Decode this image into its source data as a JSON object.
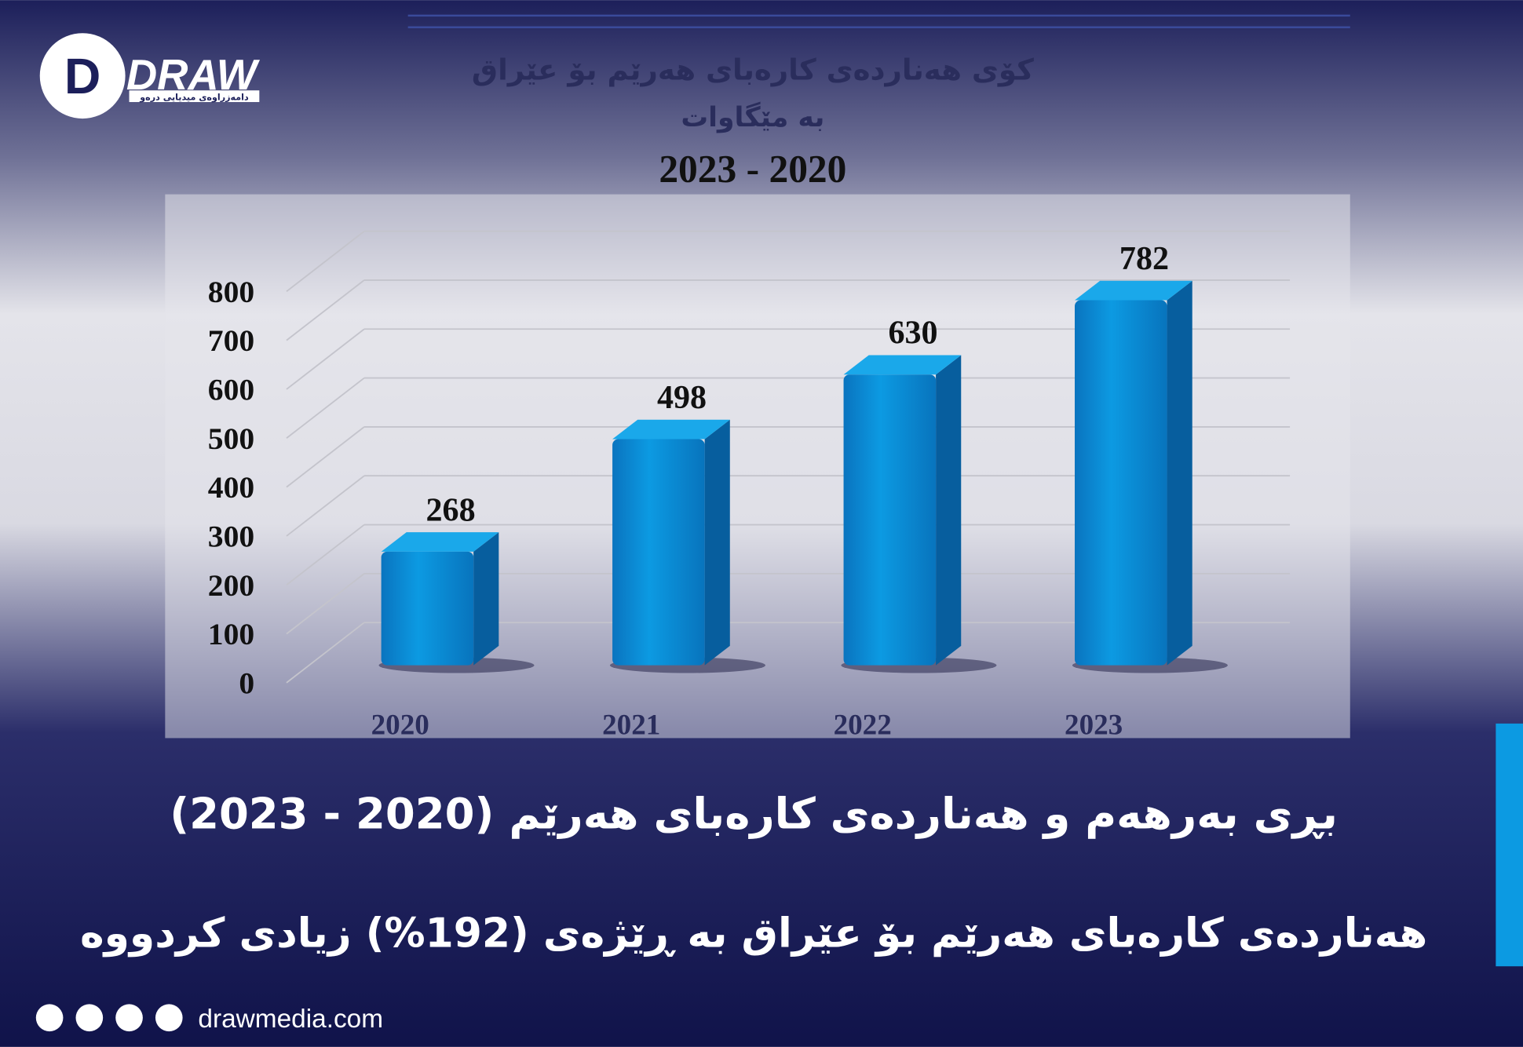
{
  "logo": {
    "name": "DRAW",
    "tagline": "دامەزراوەی میدیایی درەو"
  },
  "chart_data": {
    "type": "bar",
    "title": "کۆی هەناردەی کارەبای هەرێم بۆ عێراق",
    "subtitle": "بە مێگاوات",
    "period": "2023 - 2020",
    "categories": [
      "2020",
      "2021",
      "2022",
      "2023"
    ],
    "values": [
      268,
      498,
      630,
      782
    ],
    "color": "#0a8fd6",
    "ylim": [
      0,
      800
    ],
    "yticks": [
      0,
      100,
      200,
      300,
      400,
      500,
      600,
      700,
      800
    ],
    "grid": true
  },
  "headline": {
    "title": "بڕی بەرهەم و هەناردەی کارەبای هەرێم (2020 - 2023)",
    "subtitle": "هەناردەی کارەبای هەرێم بۆ عێراق بە ڕێژەی (192%) زیادی کردووە"
  },
  "footer": {
    "website": "drawmedia.com"
  }
}
